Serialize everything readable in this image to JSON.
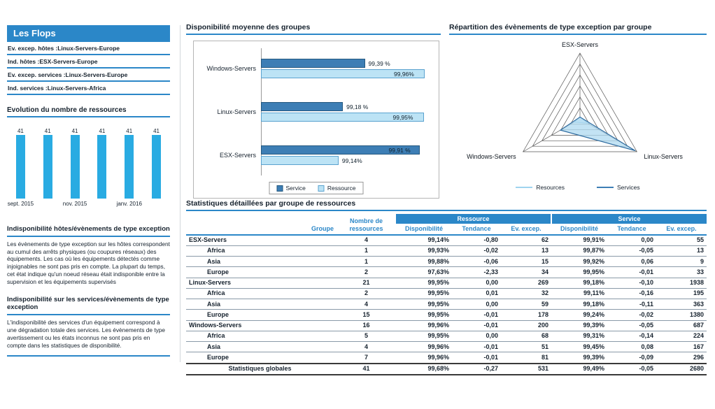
{
  "colors": {
    "primary_blue": "#2B87C8",
    "cyan_bar": "#29ABE2",
    "service_fill": "#3D7EB5",
    "service_border": "#24587F",
    "resource_fill": "#BCE3F5",
    "resource_border": "#5AA2CF"
  },
  "sidebar": {
    "title": "Les Flops",
    "flops": [
      {
        "label": "Ev. excep. hôtes :",
        "value": "Linux-Servers-Europe"
      },
      {
        "label": "Ind. hôtes :",
        "value": "ESX-Servers-Europe"
      },
      {
        "label": "Ev. excep. services :",
        "value": "Linux-Servers-Europe"
      },
      {
        "label": "Ind. services :",
        "value": "Linux-Servers-Africa"
      }
    ],
    "notes": [
      {
        "title": "Indisponibilité hôtes/évènements de type exception",
        "body": "Les évènements de type exception sur les hôtes correspondent au cumul des arrêts physiques (ou coupures réseaux) des équipements. Les cas où les équipements détectés comme injoignables ne sont pas pris en compte. La plupart du temps, cet état indique qu'un noeud réseau était indisponible entre la supervision et les équipements supervisés"
      },
      {
        "title": "Indisponibilité sur les services/évènements de type exception",
        "body": "L'indisponibilité des services d'un équipement correspond à une dégradation totale des services. Les évènements de type avertissement ou les états inconnus ne sont pas pris en compte dans les statistiques de disponibilité."
      }
    ]
  },
  "chart_data": [
    {
      "name": "evolution",
      "type": "bar",
      "title": "Evolution du nombre de ressources",
      "values": [
        41,
        41,
        41,
        41,
        41,
        41
      ],
      "bar_value_labels": [
        "41",
        "41",
        "41",
        "41",
        "41",
        "41"
      ],
      "x_tick_labels": [
        "sept. 2015",
        "nov. 2015",
        "janv. 2016"
      ],
      "tick_positions": [
        0,
        2,
        4
      ],
      "ylim": [
        0,
        45
      ]
    },
    {
      "name": "availability",
      "type": "bar",
      "orientation": "horizontal",
      "title": "Disponibilité moyenne des groupes",
      "categories": [
        "Windows-Servers",
        "Linux-Servers",
        "ESX-Servers"
      ],
      "series": [
        {
          "name": "Service",
          "values": [
            99.39,
            99.18,
            99.91
          ],
          "labels": [
            "99,39 %",
            "99,18 %",
            "99,91 %"
          ]
        },
        {
          "name": "Ressource",
          "values": [
            99.96,
            99.95,
            99.14
          ],
          "labels": [
            "99,96%",
            "99,95%",
            "99,14%"
          ]
        }
      ],
      "xlim": [
        98.4,
        100
      ],
      "legend": [
        "Service",
        "Ressource"
      ]
    },
    {
      "name": "exceptions-radar",
      "type": "radar",
      "title": "Répartition des évènements de type exception par groupe",
      "axes": [
        "ESX-Servers",
        "Linux-Servers",
        "Windows-Servers"
      ],
      "series": [
        {
          "name": "Resources",
          "values": [
            62,
            269,
            200
          ]
        },
        {
          "name": "Services",
          "values": [
            55,
            1938,
            687
          ]
        }
      ],
      "max": 2000,
      "rings": 6,
      "legend": [
        "Resources",
        "Services"
      ]
    }
  ],
  "table": {
    "title": "Statistiques détaillées par groupe de ressources",
    "group_headers": [
      "Ressource",
      "Service"
    ],
    "col_headers": {
      "group": "Groupe",
      "count": "Nombre de ressources",
      "sub": [
        "Disponibilité",
        "Tendance",
        "Ev. excep."
      ]
    },
    "rows": [
      {
        "group": "ESX-Servers",
        "level": 0,
        "count": "4",
        "cells": [
          "99,14%",
          "-0,80",
          "62",
          "99,91%",
          "0,00",
          "55"
        ]
      },
      {
        "group": "Africa",
        "level": 1,
        "count": "1",
        "cells": [
          "99,93%",
          "-0,02",
          "13",
          "99,87%",
          "-0,05",
          "13"
        ]
      },
      {
        "group": "Asia",
        "level": 1,
        "count": "1",
        "cells": [
          "99,88%",
          "-0,06",
          "15",
          "99,92%",
          "0,06",
          "9"
        ]
      },
      {
        "group": "Europe",
        "level": 1,
        "count": "2",
        "cells": [
          "97,63%",
          "-2,33",
          "34",
          "99,95%",
          "-0,01",
          "33"
        ]
      },
      {
        "group": "Linux-Servers",
        "level": 0,
        "count": "21",
        "cells": [
          "99,95%",
          "0,00",
          "269",
          "99,18%",
          "-0,10",
          "1938"
        ]
      },
      {
        "group": "Africa",
        "level": 1,
        "count": "2",
        "cells": [
          "99,95%",
          "0,01",
          "32",
          "99,11%",
          "-0,16",
          "195"
        ]
      },
      {
        "group": "Asia",
        "level": 1,
        "count": "4",
        "cells": [
          "99,95%",
          "0,00",
          "59",
          "99,18%",
          "-0,11",
          "363"
        ]
      },
      {
        "group": "Europe",
        "level": 1,
        "count": "15",
        "cells": [
          "99,95%",
          "-0,01",
          "178",
          "99,24%",
          "-0,02",
          "1380"
        ]
      },
      {
        "group": "Windows-Servers",
        "level": 0,
        "count": "16",
        "cells": [
          "99,96%",
          "-0,01",
          "200",
          "99,39%",
          "-0,05",
          "687"
        ]
      },
      {
        "group": "Africa",
        "level": 1,
        "count": "5",
        "cells": [
          "99,95%",
          "0,00",
          "68",
          "99,31%",
          "-0,14",
          "224"
        ]
      },
      {
        "group": "Asia",
        "level": 1,
        "count": "4",
        "cells": [
          "99,96%",
          "-0,01",
          "51",
          "99,45%",
          "0,08",
          "167"
        ]
      },
      {
        "group": "Europe",
        "level": 1,
        "count": "7",
        "cells": [
          "99,96%",
          "-0,01",
          "81",
          "99,39%",
          "-0,09",
          "296"
        ]
      }
    ],
    "totals": {
      "label": "Statistiques globales",
      "count": "41",
      "cells": [
        "99,68%",
        "-0,27",
        "531",
        "99,49%",
        "-0,05",
        "2680"
      ]
    }
  }
}
